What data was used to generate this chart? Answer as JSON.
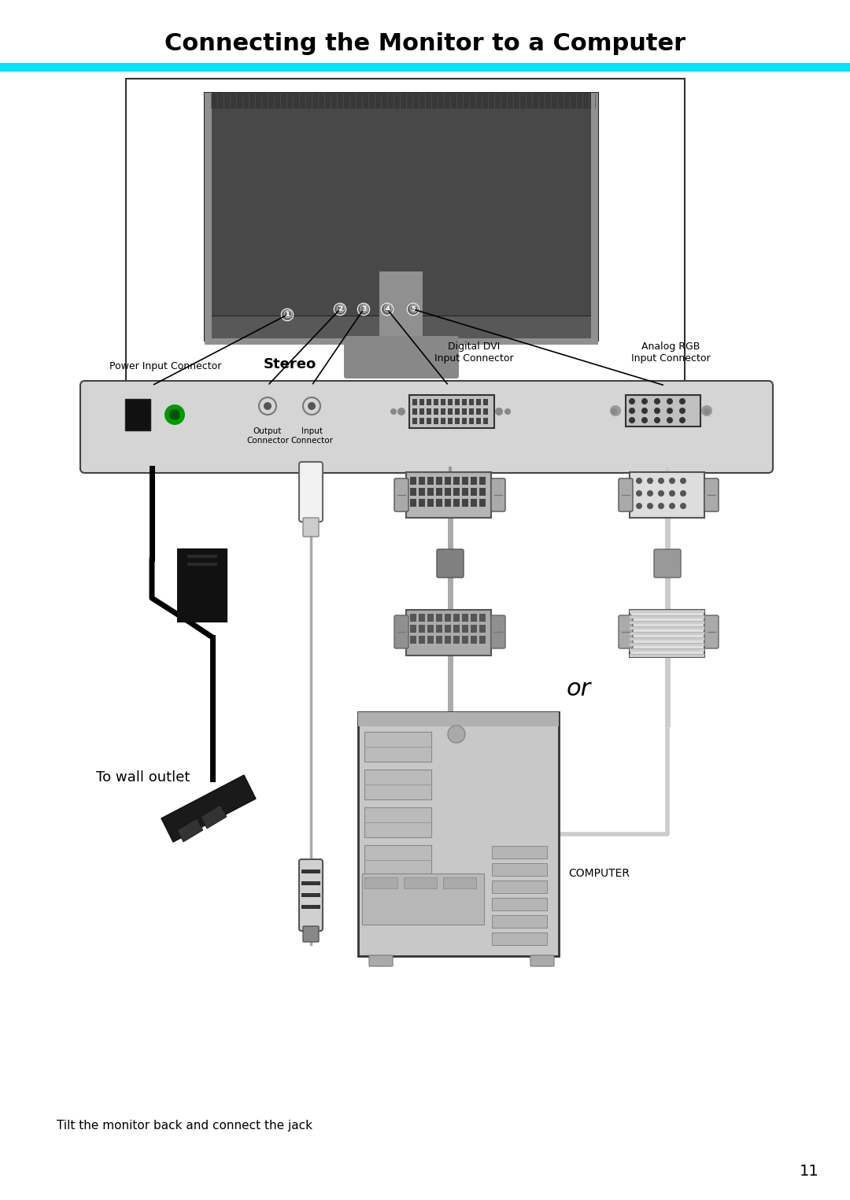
{
  "title": "Connecting the Monitor to a Computer",
  "title_fontsize": 22,
  "title_fontweight": "bold",
  "title_color": "#000000",
  "cyan_bar_color": "#00E5FF",
  "background_color": "#ffffff",
  "page_number": "11",
  "page_number_fontsize": 14,
  "footer_text": "Tilt the monitor back and connect the jack",
  "footer_fontsize": 11,
  "label_power": "Power Input Connector",
  "label_stereo": "Stereo",
  "label_output": "Output\nConnector",
  "label_input_conn": "Input\nConnector",
  "label_dvi": "Digital DVI\nInput Connector",
  "label_analog": "Analog RGB\nInput Connector",
  "label_wall": "To wall outlet",
  "label_computer": "COMPUTER",
  "label_or": "or",
  "circled_numbers": [
    "①",
    "②",
    "③",
    "④",
    "⑤"
  ]
}
